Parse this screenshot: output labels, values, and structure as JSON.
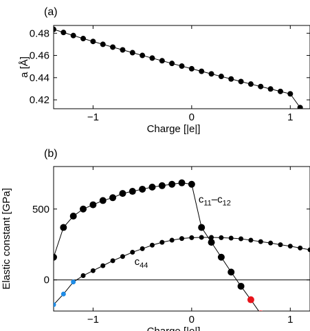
{
  "chart_data": [
    {
      "panel_label": "(a)",
      "type": "line",
      "xlabel": "Charge [|e|]",
      "ylabel": "a [Å]",
      "xlim": [
        -1.4,
        1.2
      ],
      "ylim": [
        0.412,
        0.487
      ],
      "xticks": [
        -1,
        0,
        1
      ],
      "xtick_labels": [
        "−1",
        "0",
        "1"
      ],
      "yticks": [
        0.42,
        0.44,
        0.46,
        0.48
      ],
      "ytick_labels": [
        "0.42",
        "0.44",
        "0.46",
        "0.48"
      ],
      "grid": false,
      "series": [
        {
          "color": "#000000",
          "x": [
            -1.4,
            -1.3,
            -1.2,
            -1.1,
            -1.0,
            -0.9,
            -0.8,
            -0.7,
            -0.6,
            -0.5,
            -0.4,
            -0.3,
            -0.2,
            -0.1,
            0.0,
            0.1,
            0.2,
            0.3,
            0.4,
            0.5,
            0.6,
            0.7,
            0.8,
            0.9,
            1.0,
            1.1
          ],
          "y": [
            0.4835,
            0.4807,
            0.4779,
            0.4752,
            0.4726,
            0.47,
            0.4675,
            0.465,
            0.4625,
            0.46,
            0.4576,
            0.4552,
            0.4528,
            0.4504,
            0.448,
            0.4457,
            0.4434,
            0.4411,
            0.4388,
            0.4365,
            0.4342,
            0.432,
            0.4298,
            0.4276,
            0.4254,
            0.413
          ]
        }
      ]
    },
    {
      "panel_label": "(b)",
      "type": "line",
      "xlabel": "Charge [|e|]",
      "ylabel": "Elastic constant [GPa]",
      "xlim": [
        -1.4,
        1.2
      ],
      "ylim": [
        -220,
        800
      ],
      "xticks": [
        -1,
        0,
        1
      ],
      "xtick_labels": [
        "−1",
        "0",
        "1"
      ],
      "yticks": [
        0,
        500
      ],
      "ytick_labels": [
        "0",
        "500"
      ],
      "zero_line": true,
      "grid": false,
      "annotations": [
        {
          "text": "c11–c12",
          "main": "c",
          "sub1": "11",
          "dash": "–",
          "main2": "c",
          "sub2": "12",
          "x": 0.07,
          "y": 545
        },
        {
          "text": "c44",
          "main": "c",
          "sub1": "44",
          "x": -0.58,
          "y": 105
        }
      ],
      "series": [
        {
          "name": "c11–c12",
          "color": "#000000",
          "x": [
            -1.4,
            -1.3,
            -1.2,
            -1.1,
            -1.0,
            -0.9,
            -0.8,
            -0.7,
            -0.6,
            -0.5,
            -0.4,
            -0.3,
            -0.2,
            -0.1,
            0.0,
            0.1,
            0.2,
            0.3,
            0.4,
            0.5,
            0.6,
            0.7
          ],
          "y": [
            160,
            370,
            450,
            500,
            530,
            560,
            580,
            610,
            625,
            640,
            655,
            665,
            675,
            685,
            675,
            370,
            265,
            160,
            55,
            -45,
            -140,
            -240
          ],
          "point_colors": [
            "#000000",
            "#000000",
            "#000000",
            "#000000",
            "#000000",
            "#000000",
            "#000000",
            "#000000",
            "#000000",
            "#000000",
            "#000000",
            "#000000",
            "#000000",
            "#000000",
            "#000000",
            "#000000",
            "#000000",
            "#000000",
            "#000000",
            "#000000",
            "#e8141b",
            "#e8141b"
          ],
          "marker": "large"
        },
        {
          "name": "c44",
          "color": "#000000",
          "x": [
            -1.4,
            -1.3,
            -1.2,
            -1.1,
            -1.0,
            -0.9,
            -0.8,
            -0.7,
            -0.6,
            -0.5,
            -0.4,
            -0.3,
            -0.2,
            -0.1,
            0.0,
            0.1,
            0.2,
            0.3,
            0.4,
            0.5,
            0.6,
            0.7,
            0.8,
            0.9,
            1.0,
            1.1,
            1.2
          ],
          "y": [
            -175,
            -100,
            -15,
            30,
            65,
            100,
            135,
            165,
            195,
            220,
            245,
            265,
            280,
            292,
            298,
            300,
            300,
            298,
            295,
            290,
            280,
            270,
            260,
            248,
            238,
            225,
            212
          ],
          "point_colors": [
            "#1f8ce6",
            "#1f8ce6",
            "#1f8ce6",
            "#000000",
            "#000000",
            "#000000",
            "#000000",
            "#000000",
            "#000000",
            "#000000",
            "#000000",
            "#000000",
            "#000000",
            "#000000",
            "#000000",
            "#000000",
            "#000000",
            "#000000",
            "#000000",
            "#000000",
            "#000000",
            "#000000",
            "#000000",
            "#000000",
            "#000000",
            "#000000",
            "#000000"
          ],
          "marker": "small"
        }
      ]
    }
  ]
}
